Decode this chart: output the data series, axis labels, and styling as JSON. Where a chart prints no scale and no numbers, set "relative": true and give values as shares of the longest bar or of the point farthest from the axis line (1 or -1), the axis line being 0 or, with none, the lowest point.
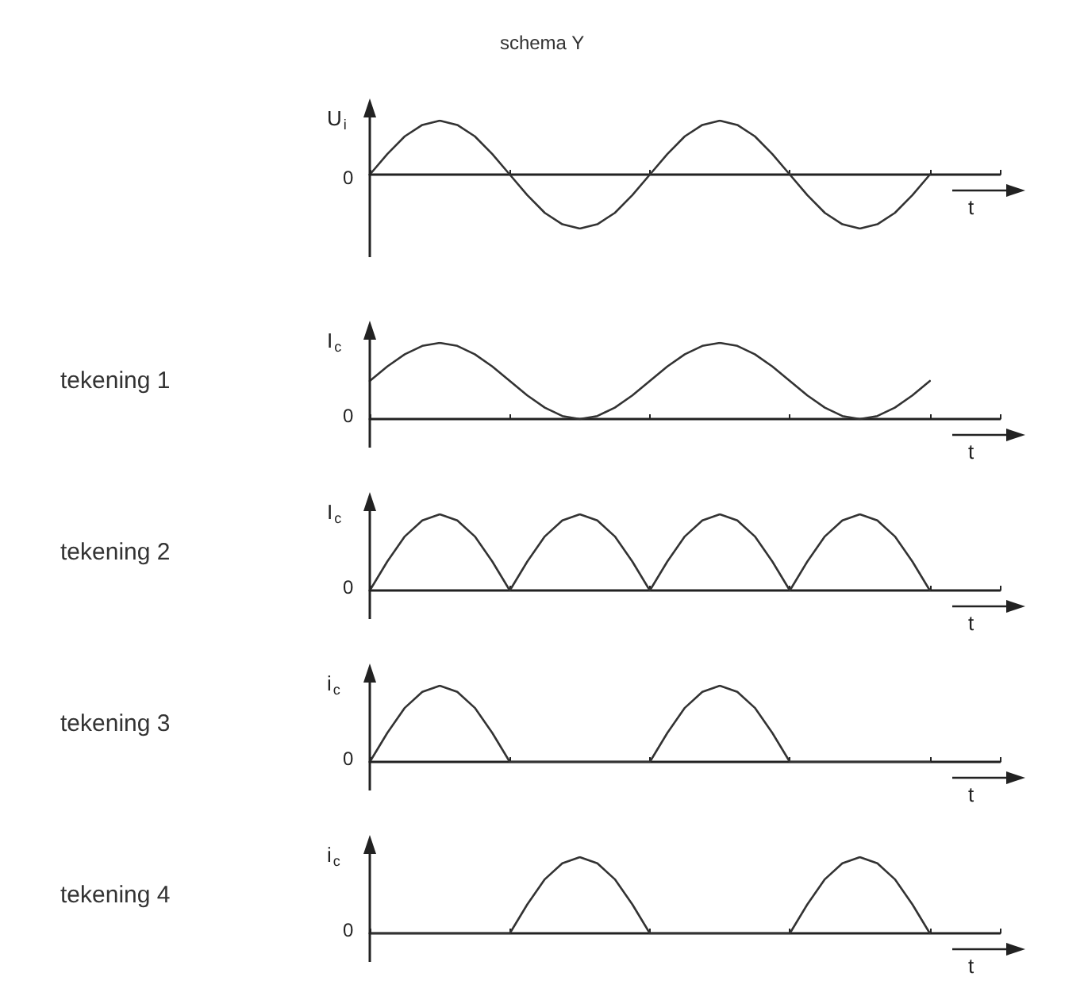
{
  "chart_data": [
    {
      "type": "line",
      "title": "schema Y",
      "ylabel": "U$_{i}$",
      "xlabel": "t",
      "annotations": [
        "0"
      ],
      "relative": true,
      "categories": [
        null,
        null,
        null,
        null,
        null,
        null,
        null,
        null,
        null,
        null,
        null,
        null,
        null,
        null,
        null,
        null,
        null,
        null,
        null,
        null,
        null,
        null,
        null,
        null,
        null,
        null,
        null,
        null,
        null,
        null,
        null,
        null,
        null,
        null,
        null,
        null,
        null
      ],
      "series": [
        {
          "color": "#333333",
          "values": [
            0,
            0.38,
            0.71,
            0.92,
            1,
            0.92,
            0.71,
            0.38,
            0,
            -0.38,
            -0.71,
            -0.92,
            -1,
            -0.92,
            -0.71,
            -0.38,
            0,
            0.38,
            0.71,
            0.92,
            1,
            0.92,
            0.71,
            0.38,
            0,
            -0.38,
            -0.71,
            -0.92,
            -1,
            -0.92,
            -0.71,
            -0.38,
            0,
            null,
            null,
            null,
            null
          ]
        }
      ]
    },
    {
      "type": "line",
      "ylabel": "I$_{c}$",
      "xlabel": "t",
      "annotations": [
        "0",
        "tekening 1"
      ],
      "relative": true,
      "categories": [
        null,
        null,
        null,
        null,
        null,
        null,
        null,
        null,
        null,
        null,
        null,
        null,
        null,
        null,
        null,
        null,
        null,
        null,
        null,
        null,
        null,
        null,
        null,
        null,
        null,
        null,
        null,
        null,
        null,
        null,
        null,
        null,
        null,
        null,
        null,
        null,
        null
      ],
      "series": [
        {
          "color": "#333333",
          "values": [
            0.5,
            0.69,
            0.85,
            0.96,
            1,
            0.96,
            0.85,
            0.69,
            0.5,
            0.31,
            0.15,
            0.04,
            0,
            0.04,
            0.15,
            0.31,
            0.5,
            0.69,
            0.85,
            0.96,
            1,
            0.96,
            0.85,
            0.69,
            0.5,
            0.31,
            0.15,
            0.04,
            0,
            0.04,
            0.15,
            0.31,
            0.5,
            null,
            null,
            null,
            null
          ]
        }
      ]
    },
    {
      "type": "line",
      "ylabel": "I$_{c}$",
      "xlabel": "t",
      "annotations": [
        "0",
        "tekening 2"
      ],
      "relative": true,
      "categories": [
        null,
        null,
        null,
        null,
        null,
        null,
        null,
        null,
        null,
        null,
        null,
        null,
        null,
        null,
        null,
        null,
        null,
        null,
        null,
        null,
        null,
        null,
        null,
        null,
        null,
        null,
        null,
        null,
        null,
        null,
        null,
        null,
        null,
        null,
        null,
        null,
        null
      ],
      "series": [
        {
          "color": "#333333",
          "values": [
            0,
            0.38,
            0.71,
            0.92,
            1,
            0.92,
            0.71,
            0.38,
            0,
            0.38,
            0.71,
            0.92,
            1,
            0.92,
            0.71,
            0.38,
            0,
            0.38,
            0.71,
            0.92,
            1,
            0.92,
            0.71,
            0.38,
            0,
            0.38,
            0.71,
            0.92,
            1,
            0.92,
            0.71,
            0.38,
            0,
            null,
            null,
            null,
            null
          ]
        }
      ]
    },
    {
      "type": "line",
      "ylabel": "i$_{c}$",
      "xlabel": "t",
      "annotations": [
        "0",
        "tekening 3"
      ],
      "relative": true,
      "categories": [
        null,
        null,
        null,
        null,
        null,
        null,
        null,
        null,
        null,
        null,
        null,
        null,
        null,
        null,
        null,
        null,
        null,
        null,
        null,
        null,
        null,
        null,
        null,
        null,
        null,
        null,
        null,
        null,
        null,
        null,
        null,
        null,
        null,
        null,
        null,
        null,
        null
      ],
      "series": [
        {
          "color": "#333333",
          "values": [
            0,
            0.38,
            0.71,
            0.92,
            1,
            0.92,
            0.71,
            0.38,
            0,
            0,
            0,
            0,
            0,
            0,
            0,
            0,
            0,
            0.38,
            0.71,
            0.92,
            1,
            0.92,
            0.71,
            0.38,
            0,
            0,
            0,
            0,
            0,
            0,
            0,
            0,
            0,
            null,
            null,
            null,
            null
          ]
        }
      ]
    },
    {
      "type": "line",
      "ylabel": "i$_{c}$",
      "xlabel": "t",
      "annotations": [
        "0",
        "tekening 4"
      ],
      "relative": true,
      "categories": [
        null,
        null,
        null,
        null,
        null,
        null,
        null,
        null,
        null,
        null,
        null,
        null,
        null,
        null,
        null,
        null,
        null,
        null,
        null,
        null,
        null,
        null,
        null,
        null,
        null,
        null,
        null,
        null,
        null,
        null,
        null,
        null,
        null,
        null,
        null,
        null,
        null
      ],
      "series": [
        {
          "color": "#333333",
          "values": [
            0,
            0,
            0,
            0,
            0,
            0,
            0,
            0,
            0,
            0.38,
            0.71,
            0.92,
            1,
            0.92,
            0.71,
            0.38,
            0,
            0,
            0,
            0,
            0,
            0,
            0,
            0,
            0,
            0.38,
            0.71,
            0.92,
            1,
            0.92,
            0.71,
            0.38,
            0,
            null,
            null,
            null,
            null
          ]
        }
      ]
    }
  ]
}
